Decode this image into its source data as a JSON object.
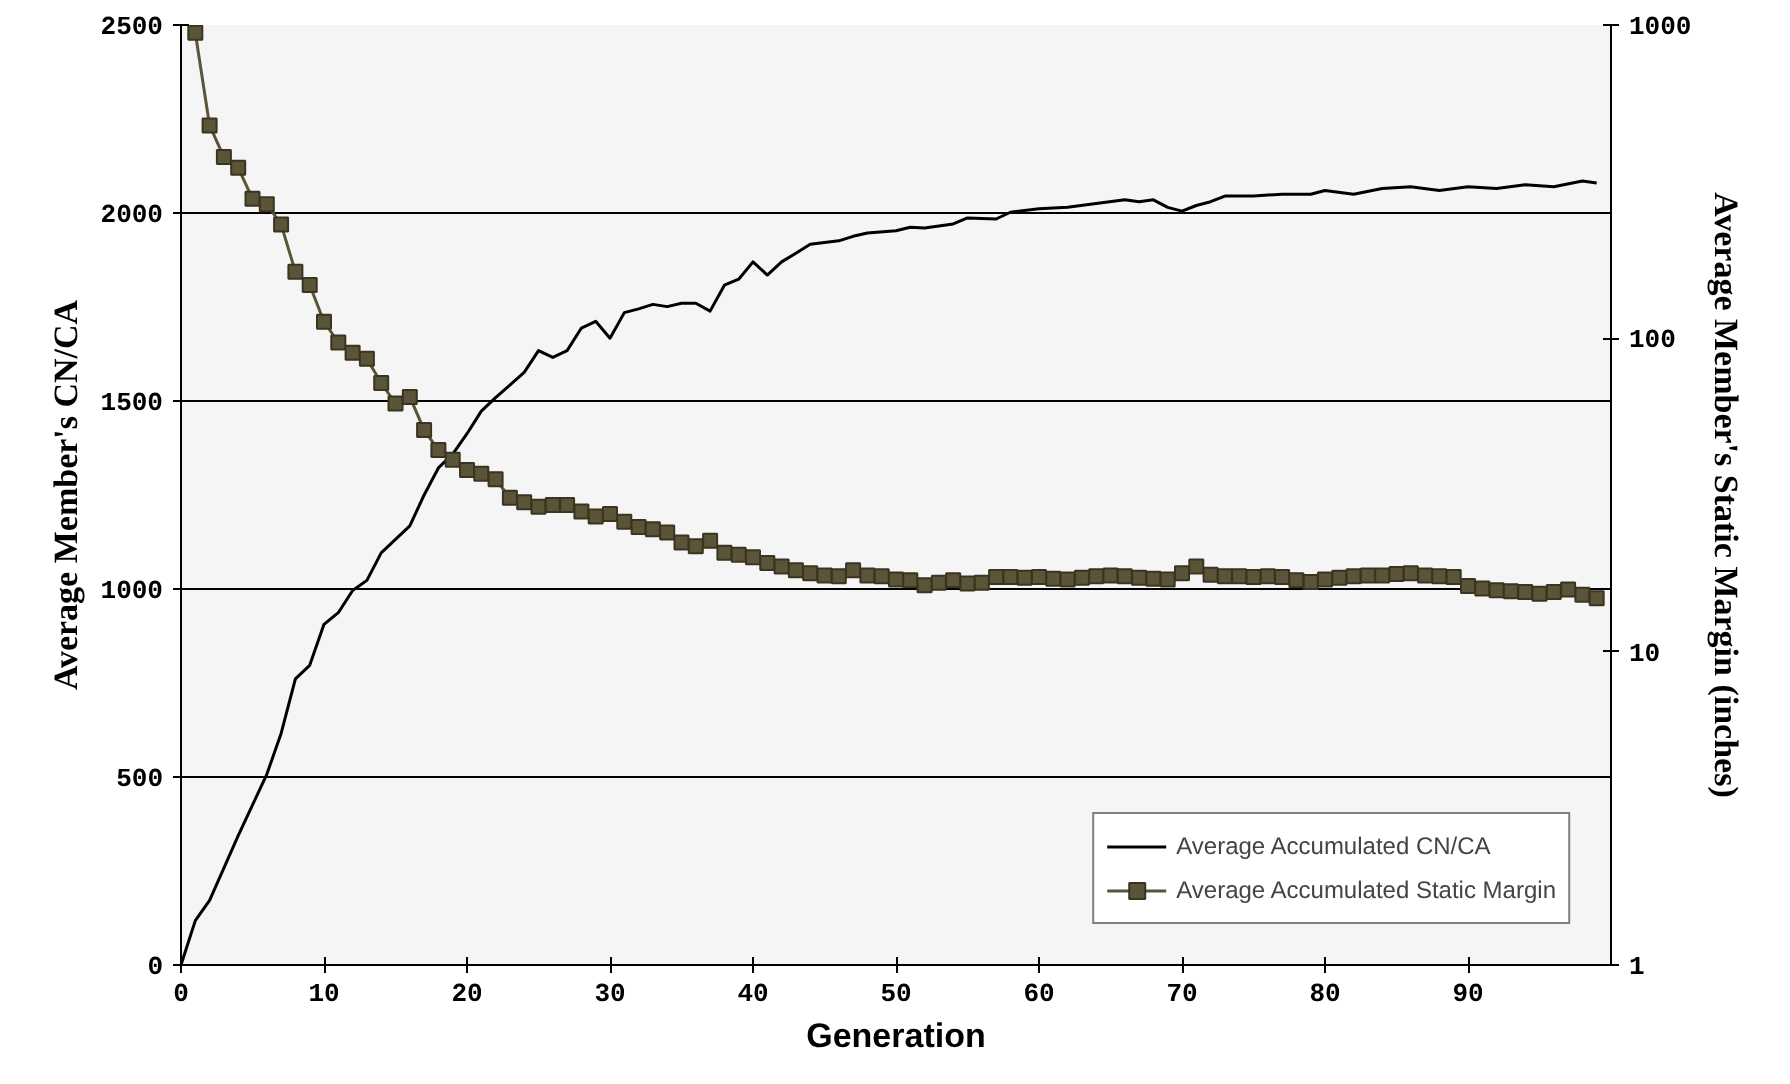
{
  "chart_data": {
    "type": "line",
    "xlabel": "Generation",
    "ylabel": "Average Member's CN/CA",
    "y2label": "Average Member's Static Margin (inches)",
    "xlim": [
      0,
      100
    ],
    "xticks": [
      0,
      10,
      20,
      30,
      40,
      50,
      60,
      70,
      80,
      90
    ],
    "ylim": [
      0,
      2500
    ],
    "yticks": [
      0,
      500,
      1000,
      1500,
      2000,
      2500
    ],
    "y2lim": [
      1,
      1000
    ],
    "y2ticks": [
      1,
      10,
      100,
      1000
    ],
    "log": "y2",
    "grid": "y",
    "legend": "bottom right",
    "series": [
      {
        "name": "Average Accumulated CN/CA",
        "color": "#000000",
        "marker": "none",
        "x": [
          0,
          1,
          2,
          4,
          6,
          7,
          8,
          9,
          10,
          11,
          12,
          13,
          14,
          15,
          16,
          17,
          18,
          19,
          20,
          21,
          22,
          24,
          25,
          26,
          27,
          28,
          29,
          30,
          31,
          32,
          33,
          34,
          35,
          36,
          37,
          38,
          39,
          40,
          41,
          42,
          43,
          44,
          46,
          47,
          48,
          50,
          51,
          52,
          54,
          55,
          57,
          58,
          60,
          62,
          64,
          66,
          67,
          68,
          69,
          70,
          71,
          72,
          73,
          75,
          77,
          79,
          80,
          82,
          84,
          86,
          88,
          90,
          92,
          94,
          96,
          98,
          99
        ],
        "values": [
          0,
          118,
          172,
          344,
          507,
          616,
          761,
          797,
          906,
          937,
          996,
          1023,
          1096,
          1132,
          1168,
          1250,
          1322,
          1359,
          1413,
          1473,
          1509,
          1576,
          1634,
          1616,
          1634,
          1694,
          1712,
          1667,
          1735,
          1745,
          1757,
          1751,
          1760,
          1760,
          1739,
          1808,
          1824,
          1870,
          1835,
          1870,
          1893,
          1917,
          1926,
          1938,
          1947,
          1953,
          1962,
          1960,
          1971,
          1987,
          1984,
          2002,
          2011,
          2015,
          2025,
          2035,
          2030,
          2035,
          2015,
          2005,
          2020,
          2030,
          2045,
          2045,
          2050,
          2050,
          2060,
          2050,
          2065,
          2070,
          2060,
          2070,
          2065,
          2075,
          2070,
          2085,
          2080
        ]
      },
      {
        "name": "Average Accumulated Static Margin",
        "color": "#5a5438",
        "marker": "square",
        "axis": "y2",
        "x": [
          1,
          2,
          3,
          4,
          5,
          6,
          7,
          8,
          9,
          10,
          11,
          12,
          13,
          14,
          15,
          16,
          17,
          18,
          19,
          20,
          21,
          22,
          23,
          24,
          25,
          26,
          27,
          28,
          29,
          30,
          31,
          32,
          33,
          34,
          35,
          36,
          37,
          38,
          39,
          40,
          41,
          42,
          43,
          44,
          45,
          46,
          47,
          48,
          49,
          50,
          51,
          52,
          53,
          54,
          55,
          56,
          57,
          58,
          59,
          60,
          61,
          62,
          63,
          64,
          65,
          66,
          67,
          68,
          69,
          70,
          71,
          72,
          73,
          74,
          75,
          76,
          77,
          78,
          79,
          80,
          81,
          82,
          83,
          84,
          85,
          86,
          87,
          88,
          89,
          90,
          91,
          92,
          93,
          94,
          95,
          96,
          97,
          98,
          99
        ],
        "values": [
          944,
          478,
          379,
          350,
          279,
          268,
          231,
          163,
          148,
          113,
          97,
          90,
          86,
          72,
          62,
          65,
          51,
          44,
          41,
          38,
          37,
          35.5,
          31,
          30,
          29,
          29.4,
          29.4,
          28,
          27,
          27.5,
          26,
          25,
          24.6,
          24,
          22.3,
          21.7,
          22.6,
          20.7,
          20.4,
          20.0,
          19.2,
          18.7,
          18.2,
          17.8,
          17.5,
          17.4,
          18.2,
          17.5,
          17.4,
          17.0,
          16.9,
          16.3,
          16.6,
          16.9,
          16.5,
          16.6,
          17.3,
          17.3,
          17.2,
          17.3,
          17.1,
          17.0,
          17.2,
          17.4,
          17.5,
          17.4,
          17.2,
          17.1,
          17.0,
          17.8,
          18.7,
          17.6,
          17.4,
          17.4,
          17.3,
          17.4,
          17.3,
          16.9,
          16.7,
          17.0,
          17.2,
          17.4,
          17.5,
          17.5,
          17.7,
          17.8,
          17.5,
          17.4,
          17.3,
          16.2,
          15.9,
          15.7,
          15.6,
          15.5,
          15.3,
          15.5,
          15.8,
          15.2,
          14.8
        ]
      }
    ]
  }
}
